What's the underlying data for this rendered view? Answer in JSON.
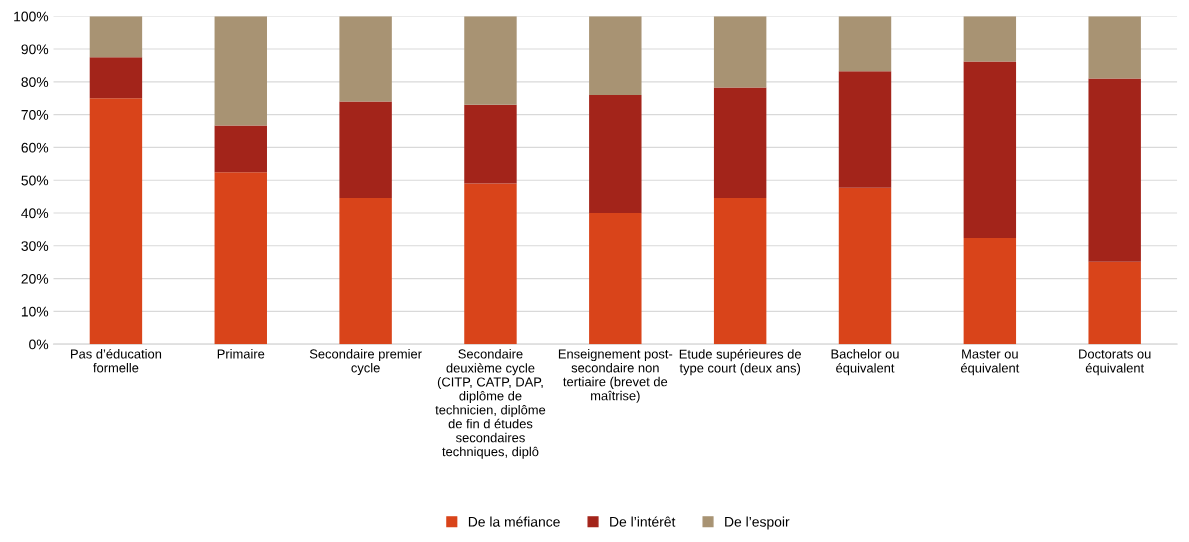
{
  "chart_data": {
    "type": "bar",
    "stacked": true,
    "categories": [
      "Pas d’éducation\nformelle",
      "Primaire",
      "Secondaire premier\ncycle",
      "Secondaire\ndeuxième cycle\n(CITP, CATP, DAP,\ndiplôme de\ntechnicien, diplôme\nde fin d études\nsecondaires\ntechniques, diplô",
      "Enseignement post-\nsecondaire non\ntertiaire (brevet de\nmaîtrise)",
      "Etude supérieures de\ntype court (deux ans)",
      "Bachelor ou\néquivalent",
      "Master ou\néquivalent",
      "Doctorats ou\néquivalent"
    ],
    "series": [
      {
        "name": "De la méfiance",
        "color": "#d9441a",
        "values": [
          75,
          52.4,
          44.6,
          49,
          40,
          44.6,
          47.7,
          32.4,
          25.1
        ]
      },
      {
        "name": "De l’intérêt",
        "color": "#a3241a",
        "values": [
          12.5,
          14.3,
          29.4,
          24,
          36,
          33.7,
          35.5,
          53.8,
          55.9
        ]
      },
      {
        "name": "De l’espoir",
        "color": "#a89373",
        "values": [
          12.5,
          33.3,
          26,
          27,
          24,
          21.7,
          16.8,
          13.8,
          19
        ]
      }
    ],
    "ylim": [
      0,
      100
    ],
    "yticks": [
      {
        "value": 0,
        "label": "0%"
      },
      {
        "value": 10,
        "label": "10%"
      },
      {
        "value": 20,
        "label": "20%"
      },
      {
        "value": 30,
        "label": "30%"
      },
      {
        "value": 40,
        "label": "40%"
      },
      {
        "value": 50,
        "label": "50%"
      },
      {
        "value": 60,
        "label": "60%"
      },
      {
        "value": 70,
        "label": "70%"
      },
      {
        "value": 80,
        "label": "80%"
      },
      {
        "value": 90,
        "label": "90%"
      },
      {
        "value": 100,
        "label": "100%"
      }
    ],
    "grid": "y",
    "legend": "bottom"
  }
}
